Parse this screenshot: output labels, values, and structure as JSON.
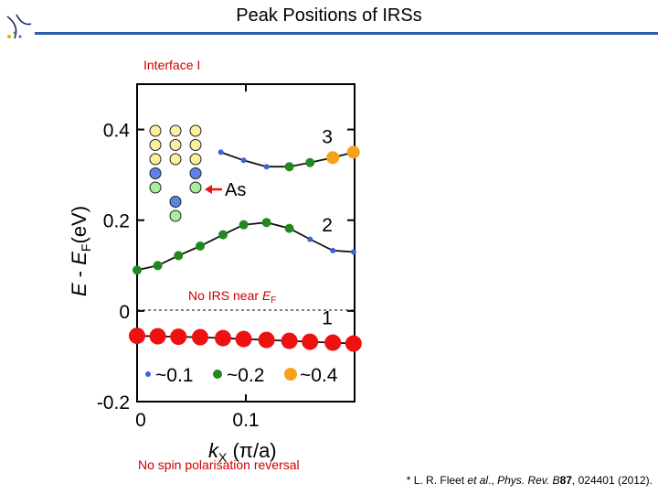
{
  "slide": {
    "title": "Peak Positions of IRSs",
    "note_top": "Interface I",
    "note_bottom": "No spin polarisation reversal",
    "citation_prefix": "* L. R. Fleet ",
    "citation_etal": "et al",
    "citation_mid": "., ",
    "citation_journal": "Phys. Rev. B",
    "citation_vol": "87",
    "citation_rest": ", 024401 (2012)."
  },
  "colors": {
    "rule": "#2f5fb0",
    "blue": "#3a63d9",
    "green": "#1f8a1f",
    "orange": "#f5a11a",
    "red": "#ee1111"
  },
  "chart_data": {
    "type": "scatter",
    "xlabel_k": "k",
    "xlabel_sub": "X",
    "xlabel_unit": " (π/a)",
    "ylabel_E": "E",
    "ylabel_mid": " - ",
    "ylabel_EF": "E",
    "ylabel_F": "F",
    "ylabel_unit": "(eV)",
    "xlim": [
      0,
      0.2
    ],
    "ylim": [
      -0.2,
      0.5
    ],
    "x_ticks": [
      {
        "v": 0,
        "label": "0"
      },
      {
        "v": 0.1,
        "label": "0.1"
      }
    ],
    "y_ticks": [
      {
        "v": -0.2,
        "label": "-0.2"
      },
      {
        "v": 0,
        "label": "0"
      },
      {
        "v": 0.2,
        "label": "0.2"
      },
      {
        "v": 0.4,
        "label": "0.4"
      }
    ],
    "band_labels": [
      {
        "label": "3",
        "x": 0.17,
        "y": 0.37
      },
      {
        "label": "2",
        "x": 0.17,
        "y": 0.175
      },
      {
        "label": "1",
        "x": 0.17,
        "y": -0.03
      }
    ],
    "annotation": {
      "text": "No IRS near ",
      "sym": "E",
      "sub": "F",
      "x": 0.048,
      "y": 0.028
    },
    "as_label": "As",
    "legend": [
      {
        "label": "~0.1",
        "color": "blue"
      },
      {
        "label": "~0.2",
        "color": "green"
      },
      {
        "label": "~0.4",
        "color": "orange"
      }
    ],
    "bands": [
      {
        "name": "3",
        "points": [
          {
            "x": 0.077,
            "y": 0.35,
            "c": "blue"
          },
          {
            "x": 0.098,
            "y": 0.332,
            "c": "blue"
          },
          {
            "x": 0.119,
            "y": 0.318,
            "c": "blue"
          },
          {
            "x": 0.14,
            "y": 0.318,
            "c": "green"
          },
          {
            "x": 0.159,
            "y": 0.327,
            "c": "green"
          },
          {
            "x": 0.18,
            "y": 0.338,
            "c": "orange"
          },
          {
            "x": 0.199,
            "y": 0.35,
            "c": "orange"
          }
        ]
      },
      {
        "name": "2",
        "points": [
          {
            "x": 0.0,
            "y": 0.09,
            "c": "green"
          },
          {
            "x": 0.019,
            "y": 0.1,
            "c": "green"
          },
          {
            "x": 0.038,
            "y": 0.122,
            "c": "green"
          },
          {
            "x": 0.058,
            "y": 0.143,
            "c": "green"
          },
          {
            "x": 0.079,
            "y": 0.168,
            "c": "green"
          },
          {
            "x": 0.098,
            "y": 0.19,
            "c": "green"
          },
          {
            "x": 0.119,
            "y": 0.195,
            "c": "green"
          },
          {
            "x": 0.14,
            "y": 0.182,
            "c": "green"
          },
          {
            "x": 0.159,
            "y": 0.158,
            "c": "blue"
          },
          {
            "x": 0.18,
            "y": 0.133,
            "c": "blue"
          },
          {
            "x": 0.199,
            "y": 0.13,
            "c": "blue"
          }
        ]
      },
      {
        "name": "1",
        "points": [
          {
            "x": 0.0,
            "y": -0.055,
            "c": "red"
          },
          {
            "x": 0.019,
            "y": -0.056,
            "c": "red"
          },
          {
            "x": 0.038,
            "y": -0.057,
            "c": "red"
          },
          {
            "x": 0.058,
            "y": -0.058,
            "c": "red"
          },
          {
            "x": 0.079,
            "y": -0.06,
            "c": "red"
          },
          {
            "x": 0.098,
            "y": -0.062,
            "c": "red"
          },
          {
            "x": 0.119,
            "y": -0.064,
            "c": "red"
          },
          {
            "x": 0.14,
            "y": -0.066,
            "c": "red"
          },
          {
            "x": 0.159,
            "y": -0.068,
            "c": "red"
          },
          {
            "x": 0.18,
            "y": -0.07,
            "c": "red"
          },
          {
            "x": 0.199,
            "y": -0.072,
            "c": "red"
          }
        ]
      }
    ]
  }
}
